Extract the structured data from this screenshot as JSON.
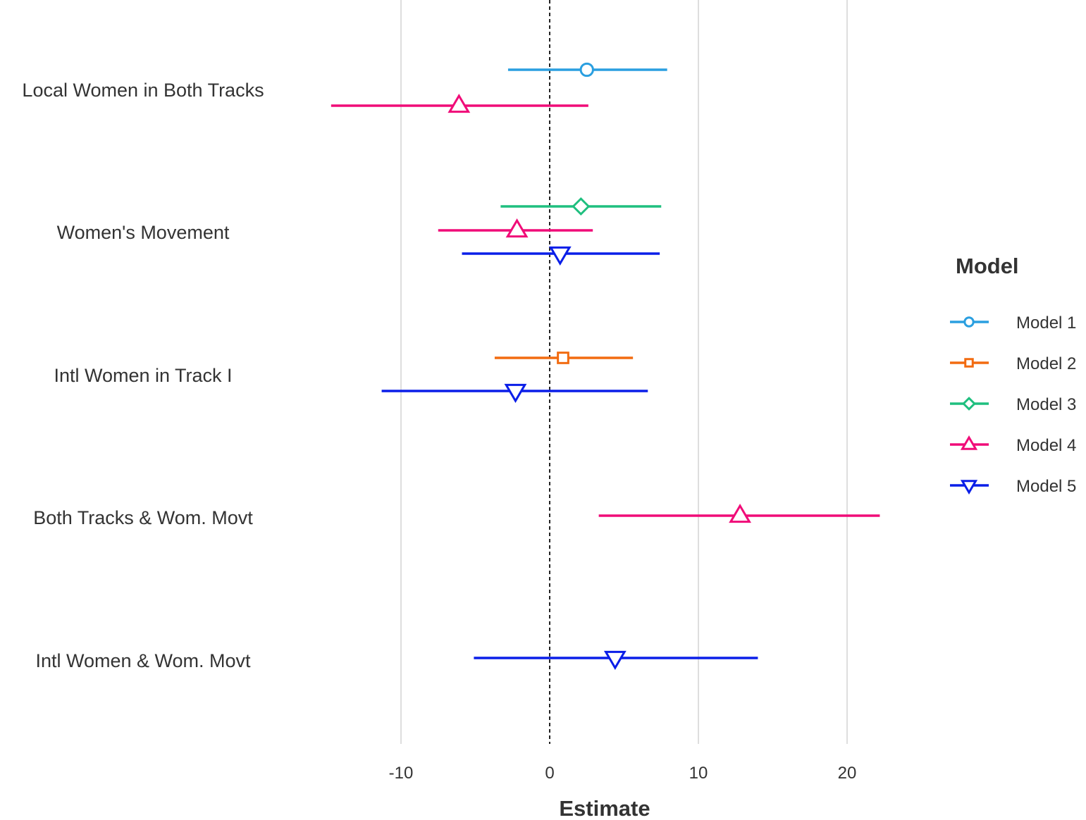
{
  "chart_data": {
    "type": "coefficient-plot",
    "title": "",
    "xlabel": "Estimate",
    "ylabel": "",
    "xlim": [
      -17,
      32
    ],
    "x_ticks": [
      -10,
      0,
      10,
      20
    ],
    "x_tick_labels": [
      "-10",
      "0",
      "10",
      "20"
    ],
    "reference_line": 0,
    "categories": [
      "Local Women in Both Tracks",
      "Women's Movement",
      "Intl Women in Track I",
      "Both Tracks & Wom. Movt",
      "Intl Women & Wom. Movt"
    ],
    "legend_title": "Model",
    "legend_position": "right",
    "series": [
      {
        "name": "Model 1",
        "color": "#2a9fe0",
        "shape": "circle",
        "points": [
          {
            "category": "Local Women in Both Tracks",
            "estimate": 2.5,
            "low": -2.8,
            "high": 7.9
          }
        ]
      },
      {
        "name": "Model 2",
        "color": "#f26b10",
        "shape": "square",
        "points": [
          {
            "category": "Intl Women in Track I",
            "estimate": 0.9,
            "low": -3.7,
            "high": 5.6
          }
        ]
      },
      {
        "name": "Model 3",
        "color": "#1fbf7f",
        "shape": "diamond",
        "points": [
          {
            "category": "Women's Movement",
            "estimate": 2.1,
            "low": -3.3,
            "high": 7.5
          }
        ]
      },
      {
        "name": "Model 4",
        "color": "#f00c78",
        "shape": "triangle-up",
        "points": [
          {
            "category": "Local Women in Both Tracks",
            "estimate": -6.1,
            "low": -14.7,
            "high": 2.6
          },
          {
            "category": "Women's Movement",
            "estimate": -2.2,
            "low": -7.5,
            "high": 2.9
          },
          {
            "category": "Both Tracks & Wom. Movt",
            "estimate": 12.8,
            "low": 3.3,
            "high": 22.2
          }
        ]
      },
      {
        "name": "Model 5",
        "color": "#0a1ee8",
        "shape": "triangle-down",
        "points": [
          {
            "category": "Women's Movement",
            "estimate": 0.7,
            "low": -5.9,
            "high": 7.4
          },
          {
            "category": "Intl Women in Track I",
            "estimate": -2.3,
            "low": -11.3,
            "high": 6.6
          },
          {
            "category": "Intl Women & Wom. Movt",
            "estimate": 4.4,
            "low": -5.1,
            "high": 14.0
          }
        ]
      }
    ]
  }
}
